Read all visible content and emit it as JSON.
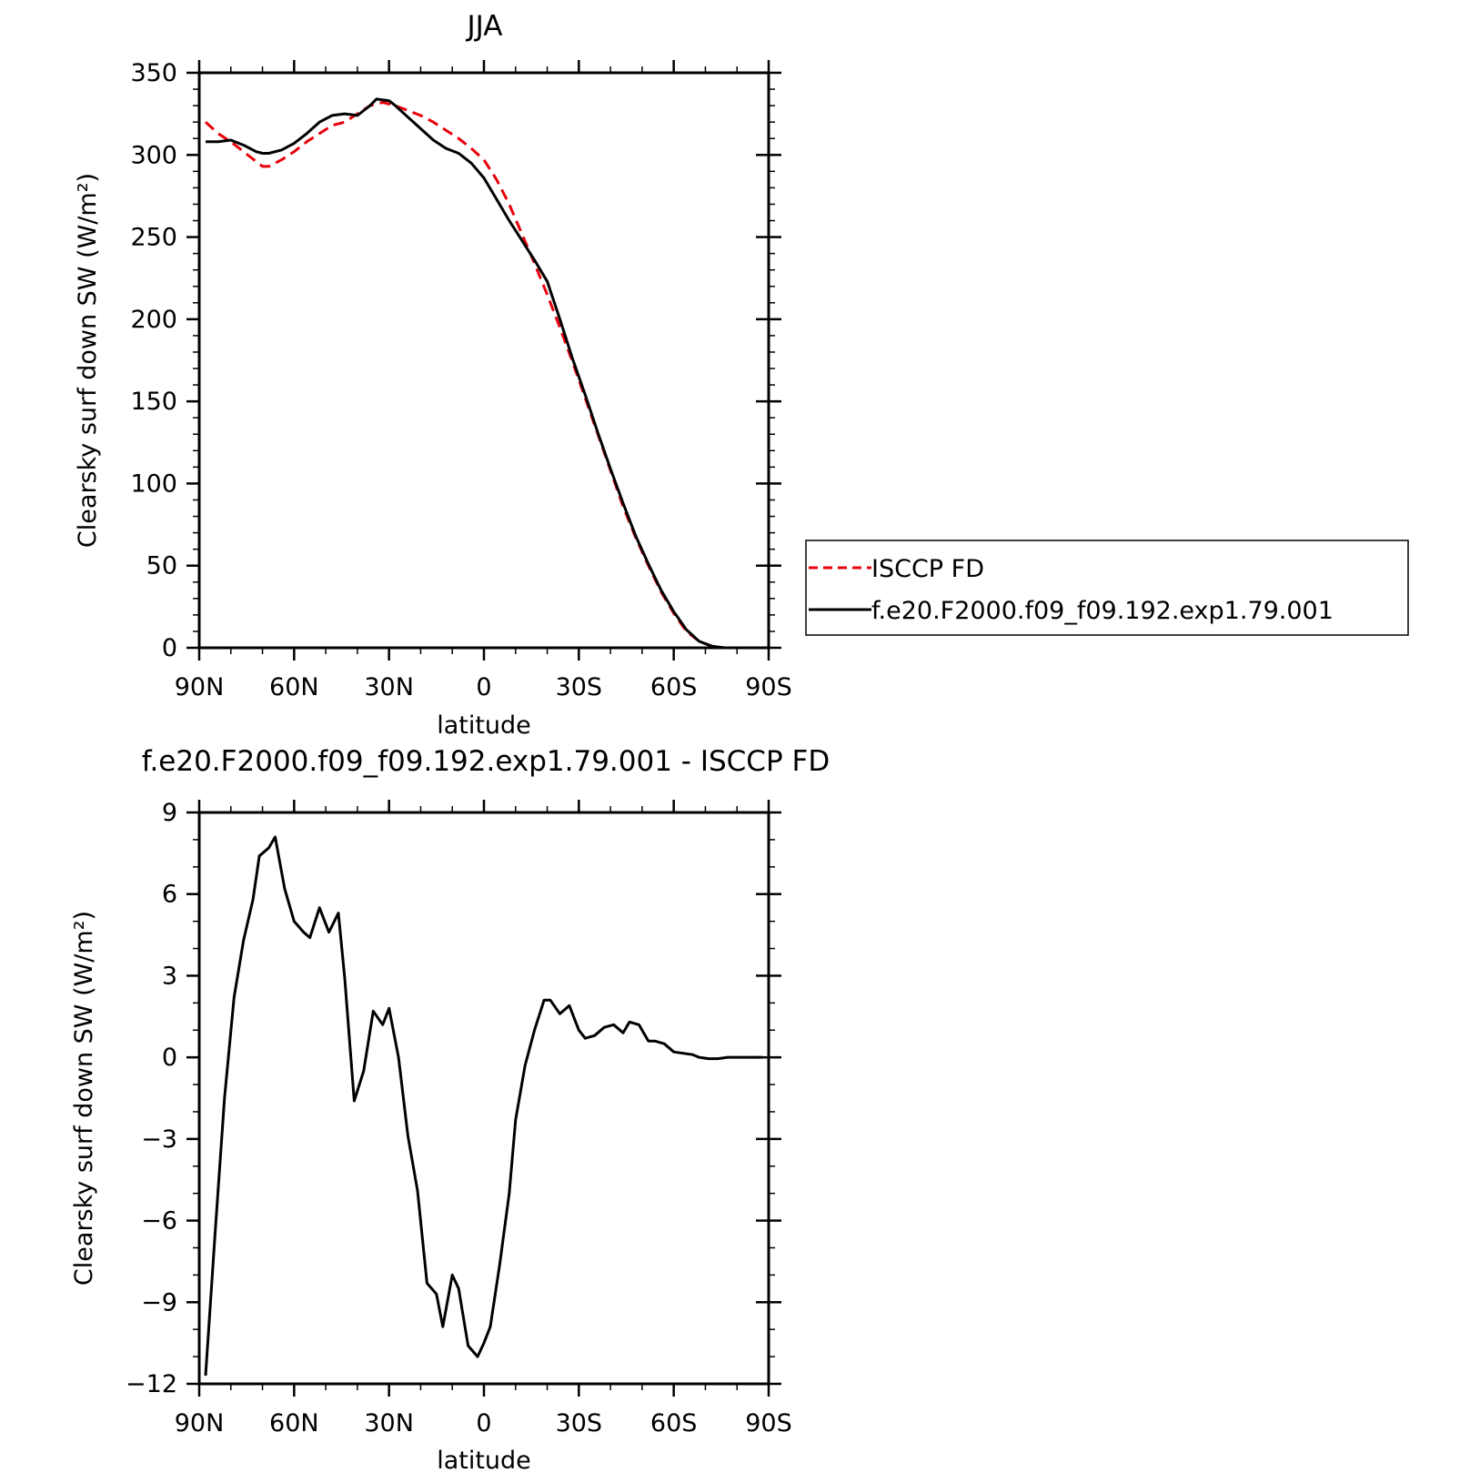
{
  "chart_data": [
    {
      "type": "line",
      "title": "JJA",
      "xlabel": "latitude",
      "ylabel": "Clearsky surf down SW (W/m²)",
      "xlim": [
        90,
        -90
      ],
      "ylim": [
        0,
        350
      ],
      "xticks": [
        {
          "value": 90,
          "label": "90N"
        },
        {
          "value": 60,
          "label": "60N"
        },
        {
          "value": 30,
          "label": "30N"
        },
        {
          "value": 0,
          "label": "0"
        },
        {
          "value": -30,
          "label": "30S"
        },
        {
          "value": -60,
          "label": "60S"
        },
        {
          "value": -90,
          "label": "90S"
        }
      ],
      "yticks": [
        0,
        50,
        100,
        150,
        200,
        250,
        300,
        350
      ],
      "legend": "right",
      "series": [
        {
          "name": "ISCCP FD",
          "color": "#e8000b",
          "dash": "dashed",
          "x": [
            88,
            84,
            80,
            76,
            72,
            70,
            68,
            64,
            60,
            56,
            52,
            48,
            44,
            40,
            36,
            32,
            28,
            24,
            20,
            16,
            12,
            8,
            4,
            0,
            -4,
            -8,
            -12,
            -16,
            -20,
            -24,
            -28,
            -32,
            -36,
            -40,
            -44,
            -48,
            -52,
            -56,
            -60,
            -64,
            -68,
            -72,
            -76,
            -80,
            -84,
            -88
          ],
          "y": [
            320,
            313,
            308,
            302,
            296,
            293,
            293,
            297,
            302,
            308,
            313,
            318,
            320,
            325,
            330,
            332,
            330,
            327,
            324,
            320,
            315,
            310,
            304,
            297,
            285,
            270,
            252,
            234,
            215,
            195,
            174,
            152,
            130,
            108,
            86,
            67,
            50,
            34,
            21,
            10,
            4,
            1,
            0,
            0,
            0,
            0
          ]
        },
        {
          "name": "f.e20.F2000.f09_f09.192.exp1.79.001",
          "color": "#000000",
          "dash": "solid",
          "x": [
            88,
            84,
            80,
            76,
            72,
            70,
            68,
            64,
            60,
            56,
            52,
            48,
            44,
            40,
            36,
            34,
            30,
            28,
            24,
            20,
            16,
            12,
            8,
            4,
            0,
            -4,
            -8,
            -12,
            -16,
            -20,
            -24,
            -28,
            -32,
            -36,
            -40,
            -44,
            -48,
            -52,
            -56,
            -60,
            -64,
            -68,
            -72,
            -76,
            -80,
            -84,
            -88
          ],
          "y": [
            308,
            308,
            309,
            306,
            302,
            301,
            301,
            303,
            307,
            313,
            320,
            324,
            325,
            324,
            330,
            334,
            333,
            330,
            323,
            316,
            309,
            304,
            301,
            295,
            286,
            273,
            260,
            248,
            236,
            223,
            200,
            176,
            154,
            131,
            109,
            88,
            68,
            51,
            35,
            22,
            11,
            4,
            1,
            0,
            0,
            0,
            0
          ]
        }
      ]
    },
    {
      "type": "line",
      "title": "f.e20.F2000.f09_f09.192.exp1.79.001 - ISCCP FD",
      "xlabel": "latitude",
      "ylabel": "Clearsky surf down SW (W/m²)",
      "xlim": [
        90,
        -90
      ],
      "ylim": [
        -12,
        9
      ],
      "xticks": [
        {
          "value": 90,
          "label": "90N"
        },
        {
          "value": 60,
          "label": "60N"
        },
        {
          "value": 30,
          "label": "30N"
        },
        {
          "value": 0,
          "label": "0"
        },
        {
          "value": -30,
          "label": "30S"
        },
        {
          "value": -60,
          "label": "60S"
        },
        {
          "value": -90,
          "label": "90S"
        }
      ],
      "yticks": [
        {
          "value": -12,
          "label": "−12"
        },
        {
          "value": -9,
          "label": "−9"
        },
        {
          "value": -6,
          "label": "−6"
        },
        {
          "value": -3,
          "label": "−3"
        },
        {
          "value": 0,
          "label": "0"
        },
        {
          "value": 3,
          "label": "3"
        },
        {
          "value": 6,
          "label": "6"
        },
        {
          "value": 9,
          "label": "9"
        }
      ],
      "series": [
        {
          "color": "#000000",
          "dash": "solid",
          "x": [
            88,
            85,
            82,
            79,
            76,
            73,
            71,
            68,
            66,
            63,
            60,
            57,
            55,
            52,
            49,
            46,
            44,
            41,
            38,
            35,
            32,
            30,
            27,
            24,
            21,
            18,
            15,
            13,
            10,
            8,
            5,
            2,
            0,
            -2,
            -5,
            -8,
            -10,
            -13,
            -16,
            -19,
            -21,
            -24,
            -27,
            -30,
            -32,
            -35,
            -38,
            -41,
            -44,
            -46,
            -49,
            -52,
            -54,
            -57,
            -60,
            -63,
            -66,
            -68,
            -71,
            -74,
            -77,
            -80,
            -82,
            -85,
            -88
          ],
          "y": [
            -11.7,
            -6.5,
            -1.5,
            2.2,
            4.3,
            5.8,
            7.4,
            7.7,
            8.1,
            6.2,
            5.0,
            4.6,
            4.4,
            5.5,
            4.6,
            5.3,
            2.9,
            -1.6,
            -0.5,
            1.7,
            1.2,
            1.8,
            0.0,
            -2.9,
            -4.9,
            -8.3,
            -8.7,
            -9.9,
            -8.0,
            -8.5,
            -10.6,
            -11.0,
            -10.5,
            -9.9,
            -7.6,
            -5.0,
            -2.3,
            -0.3,
            1.0,
            2.1,
            2.1,
            1.6,
            1.9,
            1.0,
            0.7,
            0.8,
            1.1,
            1.2,
            0.9,
            1.3,
            1.2,
            0.6,
            0.6,
            0.5,
            0.2,
            0.15,
            0.1,
            0.0,
            -0.05,
            -0.05,
            0.0,
            0.0,
            0.0,
            0.0,
            0.0
          ]
        }
      ]
    }
  ]
}
